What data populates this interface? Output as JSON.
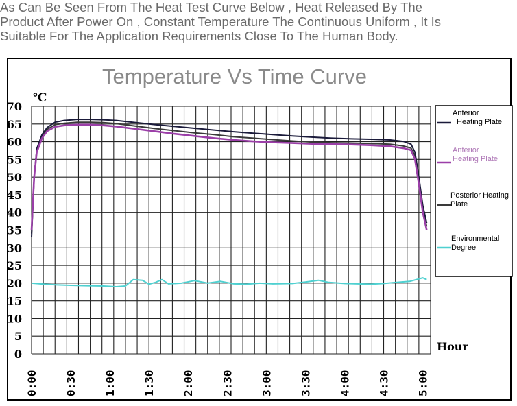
{
  "intro": {
    "line1": "As Can Be Seen From The Heat Test Curve Below , Heat Released By The",
    "line2": "Product After Power On , Constant Temperature The Continuous Uniform , It Is",
    "line3": "Suitable For The Application Requirements Close To The Human Body."
  },
  "chart_data": {
    "type": "line",
    "title": "Temperature Vs Time Curve",
    "ylabel": "℃",
    "xlabel": "Hour",
    "ylim": [
      0,
      70
    ],
    "yticks": [
      0,
      5,
      10,
      15,
      20,
      25,
      30,
      35,
      40,
      45,
      50,
      55,
      60,
      65,
      70
    ],
    "xlim_minutes": [
      0,
      306
    ],
    "xticks": [
      {
        "label": "0:00",
        "minutes": 0
      },
      {
        "label": "0:30",
        "minutes": 30
      },
      {
        "label": "1:00",
        "minutes": 60
      },
      {
        "label": "1:30",
        "minutes": 90
      },
      {
        "label": "2:00",
        "minutes": 120
      },
      {
        "label": "2:30",
        "minutes": 150
      },
      {
        "label": "3:00",
        "minutes": 180
      },
      {
        "label": "3:30",
        "minutes": 210
      },
      {
        "label": "4:00",
        "minutes": 240
      },
      {
        "label": "4:30",
        "minutes": 270
      },
      {
        "label": "5:00",
        "minutes": 300
      }
    ],
    "grid": true,
    "legend_position": "right",
    "series": [
      {
        "name": "Anterior Heating Plate",
        "legend_lines": [
          "Anterior",
          "Heating Plate"
        ],
        "color": "#1a1a3a",
        "legend_text_color": "#000000",
        "points": [
          [
            0,
            33
          ],
          [
            2,
            50
          ],
          [
            4,
            58
          ],
          [
            8,
            62
          ],
          [
            12,
            64
          ],
          [
            18,
            65.5
          ],
          [
            25,
            66
          ],
          [
            35,
            66.3
          ],
          [
            45,
            66.3
          ],
          [
            55,
            66.2
          ],
          [
            65,
            66
          ],
          [
            80,
            65.4
          ],
          [
            95,
            64.8
          ],
          [
            110,
            64.3
          ],
          [
            125,
            63.8
          ],
          [
            140,
            63.3
          ],
          [
            155,
            62.8
          ],
          [
            170,
            62.4
          ],
          [
            185,
            62
          ],
          [
            200,
            61.6
          ],
          [
            215,
            61.3
          ],
          [
            230,
            61
          ],
          [
            245,
            60.8
          ],
          [
            260,
            60.7
          ],
          [
            275,
            60.5
          ],
          [
            285,
            60.1
          ],
          [
            291,
            59.3
          ],
          [
            294,
            57
          ],
          [
            297,
            50
          ],
          [
            300,
            42
          ],
          [
            303,
            37
          ]
        ]
      },
      {
        "name": "Anterior Heating Plate",
        "legend_lines": [
          "Anterior",
          "Heating Plate"
        ],
        "color": "#9b3fa8",
        "legend_text_color": "#b07ab8",
        "points": [
          [
            0,
            35
          ],
          [
            2,
            50
          ],
          [
            4,
            57
          ],
          [
            8,
            61
          ],
          [
            12,
            63
          ],
          [
            18,
            64.2
          ],
          [
            25,
            64.6
          ],
          [
            35,
            64.8
          ],
          [
            45,
            64.8
          ],
          [
            55,
            64.6
          ],
          [
            65,
            64.3
          ],
          [
            80,
            63.6
          ],
          [
            95,
            62.9
          ],
          [
            110,
            62.2
          ],
          [
            125,
            61.6
          ],
          [
            140,
            61
          ],
          [
            155,
            60.5
          ],
          [
            170,
            60.1
          ],
          [
            185,
            59.8
          ],
          [
            200,
            59.6
          ],
          [
            215,
            59.4
          ],
          [
            230,
            59.3
          ],
          [
            245,
            59.2
          ],
          [
            260,
            59
          ],
          [
            275,
            58.7
          ],
          [
            285,
            58.2
          ],
          [
            291,
            57.6
          ],
          [
            294,
            55
          ],
          [
            297,
            48
          ],
          [
            300,
            40
          ],
          [
            303,
            35
          ]
        ]
      },
      {
        "name": "Posterior Heating Plate",
        "legend_lines": [
          "Posterior Heating",
          "Plate"
        ],
        "color": "#3a3a3a",
        "legend_text_color": "#000000",
        "points": [
          [
            0,
            34
          ],
          [
            2,
            50
          ],
          [
            4,
            57.5
          ],
          [
            8,
            61.5
          ],
          [
            12,
            63.5
          ],
          [
            18,
            64.8
          ],
          [
            25,
            65.2
          ],
          [
            35,
            65.5
          ],
          [
            45,
            65.5
          ],
          [
            55,
            65.4
          ],
          [
            65,
            65.1
          ],
          [
            80,
            64.4
          ],
          [
            95,
            63.7
          ],
          [
            110,
            63.1
          ],
          [
            125,
            62.5
          ],
          [
            140,
            62
          ],
          [
            155,
            61.4
          ],
          [
            170,
            61
          ],
          [
            185,
            60.6
          ],
          [
            200,
            60.2
          ],
          [
            215,
            59.9
          ],
          [
            230,
            59.7
          ],
          [
            245,
            59.6
          ],
          [
            260,
            59.5
          ],
          [
            275,
            59.3
          ],
          [
            285,
            58.8
          ],
          [
            291,
            58.2
          ],
          [
            294,
            56
          ],
          [
            297,
            49
          ],
          [
            300,
            41
          ],
          [
            303,
            36
          ]
        ]
      },
      {
        "name": "Environmental Degree",
        "legend_lines": [
          "Environmental",
          "Degree"
        ],
        "color": "#4fd0d0",
        "legend_text_color": "#000000",
        "points": [
          [
            0,
            20
          ],
          [
            10,
            19.7
          ],
          [
            20,
            19.5
          ],
          [
            30,
            19.4
          ],
          [
            40,
            19.3
          ],
          [
            55,
            19.2
          ],
          [
            65,
            19
          ],
          [
            72,
            19.2
          ],
          [
            78,
            21
          ],
          [
            85,
            20.8
          ],
          [
            90,
            19.7
          ],
          [
            95,
            20.2
          ],
          [
            100,
            21
          ],
          [
            105,
            19.8
          ],
          [
            115,
            20
          ],
          [
            125,
            20.7
          ],
          [
            135,
            20
          ],
          [
            145,
            20.5
          ],
          [
            155,
            19.8
          ],
          [
            165,
            19.7
          ],
          [
            175,
            20
          ],
          [
            185,
            19.8
          ],
          [
            200,
            19.9
          ],
          [
            210,
            20.3
          ],
          [
            220,
            20.8
          ],
          [
            228,
            20.2
          ],
          [
            240,
            19.9
          ],
          [
            250,
            19.8
          ],
          [
            260,
            19.7
          ],
          [
            270,
            19.9
          ],
          [
            280,
            20.2
          ],
          [
            290,
            20.5
          ],
          [
            300,
            21.5
          ],
          [
            303,
            21
          ]
        ]
      }
    ]
  }
}
